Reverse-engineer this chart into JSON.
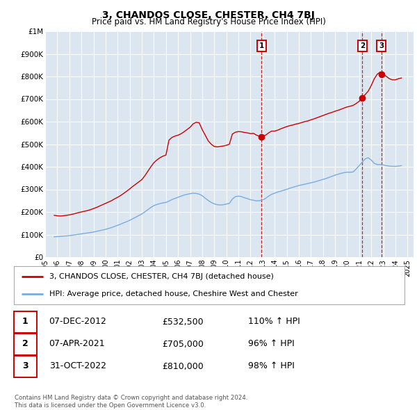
{
  "title": "3, CHANDOS CLOSE, CHESTER, CH4 7BJ",
  "subtitle": "Price paid vs. HM Land Registry's House Price Index (HPI)",
  "ylim": [
    0,
    1000000
  ],
  "yticks": [
    0,
    100000,
    200000,
    300000,
    400000,
    500000,
    600000,
    700000,
    800000,
    900000,
    1000000
  ],
  "ytick_labels": [
    "£0",
    "£100K",
    "£200K",
    "£300K",
    "£400K",
    "£500K",
    "£600K",
    "£700K",
    "£800K",
    "£900K",
    "£1M"
  ],
  "xlim_start": 1995.0,
  "xlim_end": 2025.5,
  "xtick_years": [
    1995,
    1996,
    1997,
    1998,
    1999,
    2000,
    2001,
    2002,
    2003,
    2004,
    2005,
    2006,
    2007,
    2008,
    2009,
    2010,
    2011,
    2012,
    2013,
    2014,
    2015,
    2016,
    2017,
    2018,
    2019,
    2020,
    2021,
    2022,
    2023,
    2024,
    2025
  ],
  "red_line_color": "#cc0000",
  "blue_line_color": "#7aacdd",
  "vline_color": "#cc0000",
  "marker_color": "#cc0000",
  "annotation_box_color": "#cc0000",
  "background_color": "#ffffff",
  "plot_bg_color": "#dce6f0",
  "grid_color": "#ffffff",
  "transactions": [
    {
      "label": "1",
      "date": "07-DEC-2012",
      "year": 2012.92,
      "price": 532500,
      "pct": "110%",
      "direction": "↑"
    },
    {
      "label": "2",
      "date": "07-APR-2021",
      "year": 2021.27,
      "price": 705000,
      "pct": "96%",
      "direction": "↑"
    },
    {
      "label": "3",
      "date": "31-OCT-2022",
      "year": 2022.83,
      "price": 810000,
      "pct": "98%",
      "direction": "↑"
    }
  ],
  "legend_line1": "3, CHANDOS CLOSE, CHESTER, CH4 7BJ (detached house)",
  "legend_line2": "HPI: Average price, detached house, Cheshire West and Chester",
  "footer": "Contains HM Land Registry data © Crown copyright and database right 2024.\nThis data is licensed under the Open Government Licence v3.0.",
  "red_data_years": [
    1995.75,
    1996.0,
    1996.25,
    1996.5,
    1996.75,
    1997.0,
    1997.25,
    1997.5,
    1997.75,
    1998.0,
    1998.25,
    1998.5,
    1998.75,
    1999.0,
    1999.25,
    1999.5,
    1999.75,
    2000.0,
    2000.25,
    2000.5,
    2000.75,
    2001.0,
    2001.25,
    2001.5,
    2001.75,
    2002.0,
    2002.25,
    2002.5,
    2002.75,
    2003.0,
    2003.25,
    2003.5,
    2003.75,
    2004.0,
    2004.25,
    2004.5,
    2004.75,
    2005.0,
    2005.25,
    2005.5,
    2005.75,
    2006.0,
    2006.25,
    2006.5,
    2006.75,
    2007.0,
    2007.25,
    2007.5,
    2007.75,
    2008.0,
    2008.25,
    2008.5,
    2008.75,
    2009.0,
    2009.25,
    2009.5,
    2009.75,
    2010.0,
    2010.25,
    2010.5,
    2010.75,
    2011.0,
    2011.25,
    2011.5,
    2011.75,
    2012.0,
    2012.25,
    2012.5,
    2012.75,
    2013.0,
    2013.25,
    2013.5,
    2013.75,
    2014.0,
    2014.25,
    2014.5,
    2014.75,
    2015.0,
    2015.25,
    2015.5,
    2015.75,
    2016.0,
    2016.25,
    2016.5,
    2016.75,
    2017.0,
    2017.25,
    2017.5,
    2017.75,
    2018.0,
    2018.25,
    2018.5,
    2018.75,
    2019.0,
    2019.25,
    2019.5,
    2019.75,
    2020.0,
    2020.25,
    2020.5,
    2020.75,
    2021.0,
    2021.25,
    2021.5,
    2021.75,
    2022.0,
    2022.25,
    2022.5,
    2022.75,
    2023.0,
    2023.25,
    2023.5,
    2023.75,
    2024.0,
    2024.25,
    2024.5
  ],
  "red_data_values": [
    185000,
    183000,
    182000,
    183000,
    185000,
    187000,
    190000,
    193000,
    197000,
    200000,
    203000,
    206000,
    210000,
    215000,
    220000,
    226000,
    232000,
    238000,
    244000,
    250000,
    258000,
    265000,
    273000,
    282000,
    292000,
    302000,
    313000,
    323000,
    333000,
    343000,
    360000,
    380000,
    400000,
    418000,
    430000,
    440000,
    447000,
    452000,
    518000,
    530000,
    536000,
    540000,
    546000,
    555000,
    565000,
    575000,
    590000,
    597000,
    595000,
    565000,
    540000,
    515000,
    500000,
    490000,
    488000,
    490000,
    492000,
    495000,
    500000,
    545000,
    553000,
    556000,
    555000,
    552000,
    550000,
    547000,
    548000,
    540000,
    535000,
    535000,
    540000,
    550000,
    558000,
    558000,
    562000,
    568000,
    573000,
    578000,
    582000,
    585000,
    589000,
    592000,
    596000,
    600000,
    603000,
    608000,
    612000,
    617000,
    622000,
    627000,
    632000,
    637000,
    641000,
    646000,
    650000,
    655000,
    660000,
    665000,
    668000,
    672000,
    680000,
    690000,
    705000,
    720000,
    735000,
    760000,
    790000,
    810000,
    820000,
    810000,
    800000,
    790000,
    785000,
    785000,
    790000,
    793000
  ],
  "blue_data_years": [
    1995.75,
    1996.0,
    1996.25,
    1996.5,
    1996.75,
    1997.0,
    1997.25,
    1997.5,
    1997.75,
    1998.0,
    1998.25,
    1998.5,
    1998.75,
    1999.0,
    1999.25,
    1999.5,
    1999.75,
    2000.0,
    2000.25,
    2000.5,
    2000.75,
    2001.0,
    2001.25,
    2001.5,
    2001.75,
    2002.0,
    2002.25,
    2002.5,
    2002.75,
    2003.0,
    2003.25,
    2003.5,
    2003.75,
    2004.0,
    2004.25,
    2004.5,
    2004.75,
    2005.0,
    2005.25,
    2005.5,
    2005.75,
    2006.0,
    2006.25,
    2006.5,
    2006.75,
    2007.0,
    2007.25,
    2007.5,
    2007.75,
    2008.0,
    2008.25,
    2008.5,
    2008.75,
    2009.0,
    2009.25,
    2009.5,
    2009.75,
    2010.0,
    2010.25,
    2010.5,
    2010.75,
    2011.0,
    2011.25,
    2011.5,
    2011.75,
    2012.0,
    2012.25,
    2012.5,
    2012.75,
    2013.0,
    2013.25,
    2013.5,
    2013.75,
    2014.0,
    2014.25,
    2014.5,
    2014.75,
    2015.0,
    2015.25,
    2015.5,
    2015.75,
    2016.0,
    2016.25,
    2016.5,
    2016.75,
    2017.0,
    2017.25,
    2017.5,
    2017.75,
    2018.0,
    2018.25,
    2018.5,
    2018.75,
    2019.0,
    2019.25,
    2019.5,
    2019.75,
    2020.0,
    2020.25,
    2020.5,
    2020.75,
    2021.0,
    2021.25,
    2021.5,
    2021.75,
    2022.0,
    2022.25,
    2022.5,
    2022.75,
    2023.0,
    2023.25,
    2023.5,
    2023.75,
    2024.0,
    2024.25,
    2024.5
  ],
  "blue_data_values": [
    90000,
    91000,
    92000,
    93000,
    94000,
    95000,
    97000,
    99000,
    101000,
    103000,
    105000,
    107000,
    109000,
    111000,
    114000,
    117000,
    120000,
    123000,
    127000,
    131000,
    136000,
    141000,
    146000,
    152000,
    157000,
    163000,
    170000,
    177000,
    184000,
    191000,
    200000,
    210000,
    220000,
    228000,
    233000,
    237000,
    240000,
    242000,
    248000,
    255000,
    260000,
    265000,
    270000,
    275000,
    278000,
    281000,
    283000,
    282000,
    279000,
    272000,
    261000,
    251000,
    242000,
    236000,
    232000,
    231000,
    232000,
    235000,
    238000,
    257000,
    268000,
    270000,
    268000,
    263000,
    259000,
    254000,
    252000,
    249000,
    250000,
    253000,
    260000,
    270000,
    278000,
    283000,
    288000,
    292000,
    296000,
    300000,
    305000,
    309000,
    313000,
    317000,
    320000,
    323000,
    326000,
    329000,
    332000,
    336000,
    340000,
    344000,
    348000,
    353000,
    358000,
    363000,
    367000,
    371000,
    374000,
    376000,
    376000,
    377000,
    390000,
    405000,
    420000,
    435000,
    440000,
    430000,
    415000,
    410000,
    410000,
    408000,
    405000,
    403000,
    402000,
    402000,
    403000,
    405000
  ]
}
